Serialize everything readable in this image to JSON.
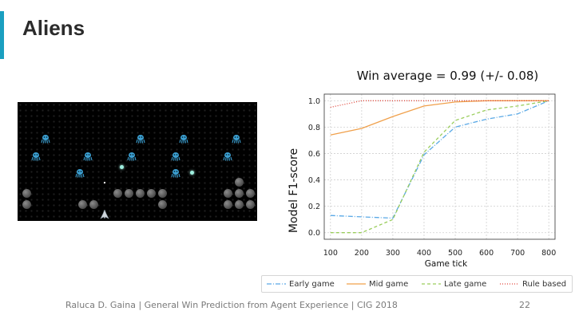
{
  "slide": {
    "title": "Aliens",
    "footer": "Raluca D. Gaina | General Win Prediction from Agent Experience | CIG 2018",
    "page_number": "22",
    "accent_color": "#1a9fc0"
  },
  "game_view": {
    "alien_icon": "alien-icon",
    "ship_icon": "spaceship-icon",
    "alien_color": "#3ca0d2",
    "bomb_color": "#9ff0e0"
  },
  "chart_data": {
    "type": "line",
    "title": "Win average = 0.99 (+/- 0.08)",
    "xlabel": "Game tick",
    "ylabel": "Model F1-score",
    "x": [
      100,
      200,
      300,
      400,
      500,
      600,
      700,
      800
    ],
    "xticks": [
      "100",
      "200",
      "300",
      "400",
      "500",
      "600",
      "700",
      "800"
    ],
    "yticks": [
      "0.0",
      "0.2",
      "0.4",
      "0.6",
      "0.8",
      "1.0"
    ],
    "xlim": [
      80,
      820
    ],
    "ylim": [
      -0.05,
      1.05
    ],
    "grid": true,
    "legend_placement": "bottom",
    "series": [
      {
        "name": "Early game",
        "color": "#5aa9e6",
        "dash": "6 2 1 2",
        "values": [
          0.13,
          0.12,
          0.11,
          0.59,
          0.8,
          0.86,
          0.9,
          1.0
        ]
      },
      {
        "name": "Mid game",
        "color": "#f0a04b",
        "dash": "",
        "values": [
          0.74,
          0.79,
          0.88,
          0.96,
          0.99,
          1.0,
          1.0,
          1.0
        ]
      },
      {
        "name": "Late game",
        "color": "#9acd5c",
        "dash": "4 3",
        "values": [
          0.0,
          0.0,
          0.1,
          0.61,
          0.85,
          0.93,
          0.96,
          1.0
        ]
      },
      {
        "name": "Rule based",
        "color": "#e0453a",
        "dash": "1 2",
        "values": [
          0.95,
          1.0,
          1.0,
          1.0,
          1.0,
          1.0,
          1.0,
          1.0
        ]
      }
    ]
  }
}
